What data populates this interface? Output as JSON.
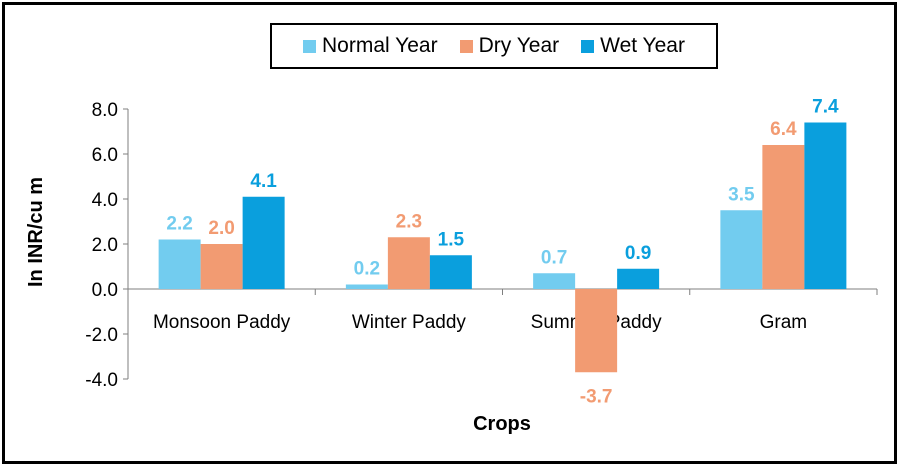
{
  "chart_data": {
    "type": "bar",
    "title": "",
    "xlabel": "Crops",
    "ylabel": "In INR/cu m",
    "ylim": [
      -4.0,
      8.0
    ],
    "yticks": [
      "8.0",
      "6.0",
      "4.0",
      "2.0",
      "0.0",
      "-2.0",
      "-4.0"
    ],
    "categories": [
      "Monsoon Paddy",
      "Winter Paddy",
      "Summer Paddy",
      "Gram"
    ],
    "series": [
      {
        "name": "Normal Year",
        "color": "#72CCEF",
        "values": [
          2.2,
          0.2,
          0.7,
          3.5
        ],
        "labels": [
          "2.2",
          "0.2",
          "0.7",
          "3.5"
        ]
      },
      {
        "name": "Dry Year",
        "color": "#F29B72",
        "values": [
          2.0,
          2.3,
          -3.7,
          6.4
        ],
        "labels": [
          "2.0",
          "2.3",
          "-3.7",
          "6.4"
        ]
      },
      {
        "name": "Wet Year",
        "color": "#0A9FDD",
        "values": [
          4.1,
          1.5,
          0.9,
          7.4
        ],
        "labels": [
          "4.1",
          "1.5",
          "0.9",
          "7.4"
        ]
      }
    ],
    "legend_position": "top",
    "grid": false
  }
}
